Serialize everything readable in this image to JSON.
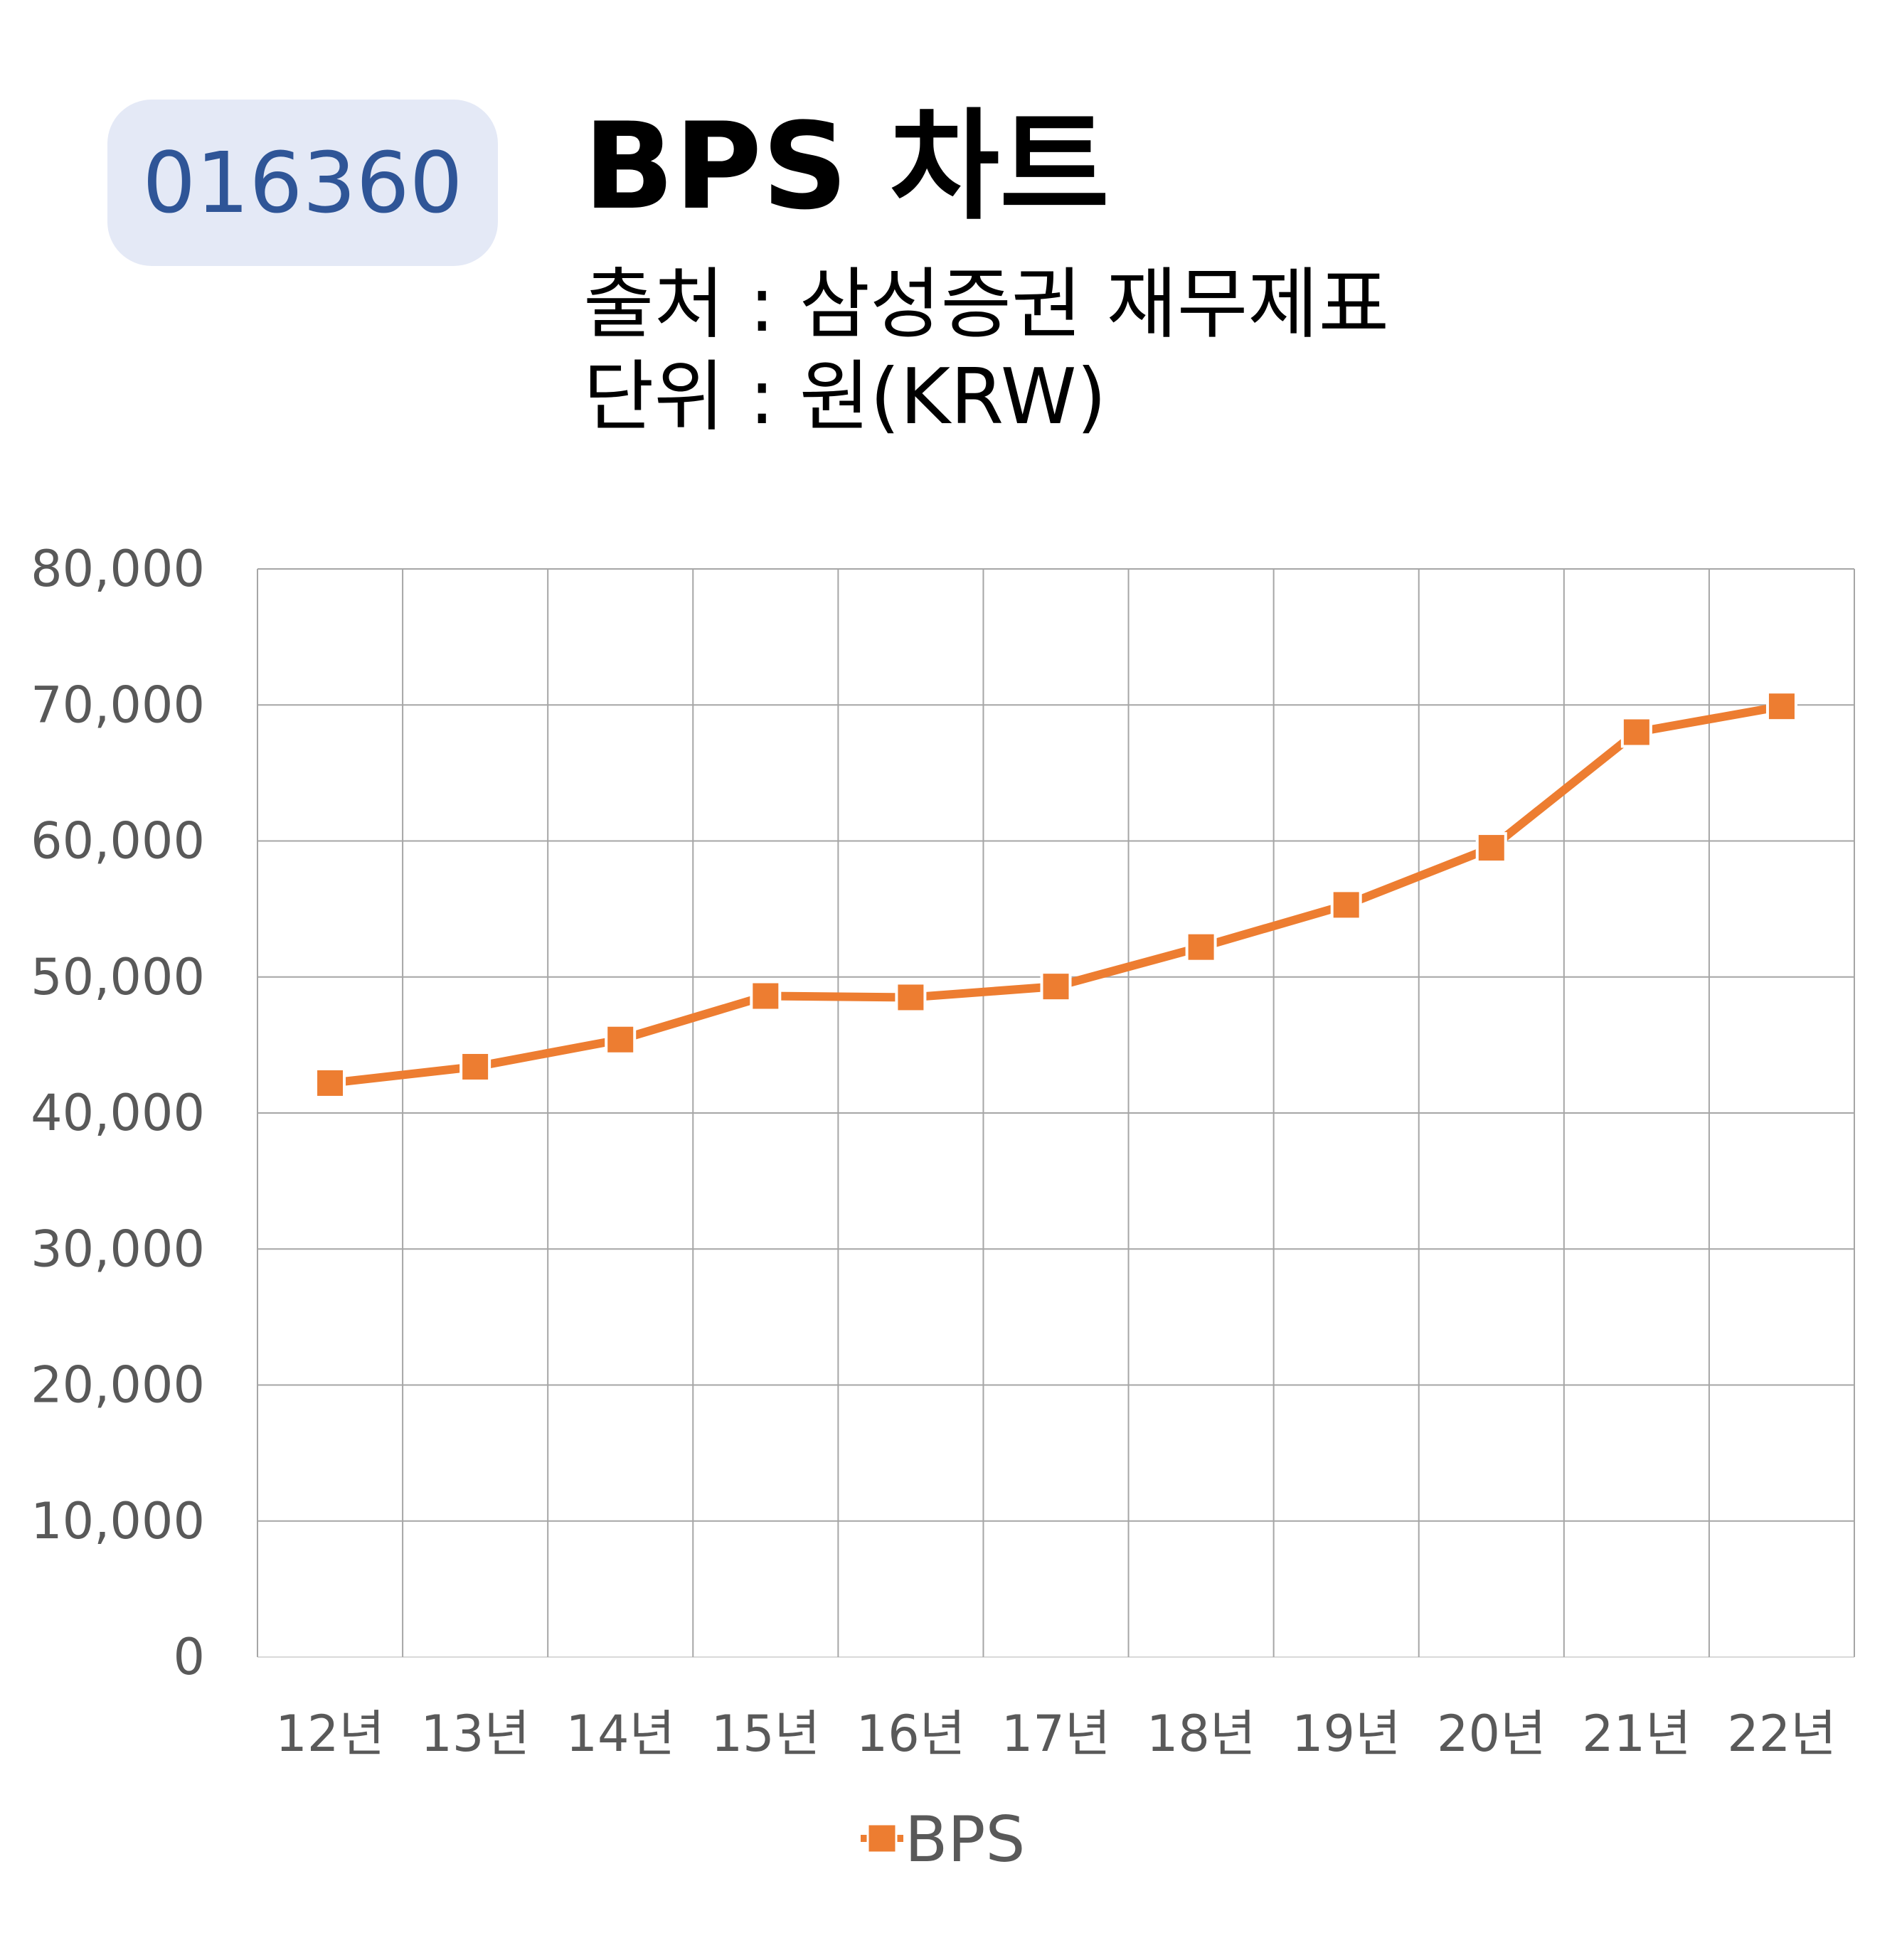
{
  "header": {
    "stock_code": "016360",
    "title": "BPS 차트",
    "source": "출처 : 삼성증권 재무제표",
    "unit": "단위 : 원(KRW)"
  },
  "chart_data": {
    "type": "line",
    "categories": [
      "12년",
      "13년",
      "14년",
      "15년",
      "16년",
      "17년",
      "18년",
      "19년",
      "20년",
      "21년",
      "22년"
    ],
    "series": [
      {
        "name": "BPS",
        "color": "#ed7d31",
        "marker": "square",
        "values": [
          42200,
          43400,
          45400,
          48600,
          48500,
          49300,
          52200,
          55300,
          59500,
          68000,
          69900
        ]
      }
    ],
    "y_ticks": [
      "0",
      "10,000",
      "20,000",
      "30,000",
      "40,000",
      "50,000",
      "60,000",
      "70,000",
      "80,000"
    ],
    "ylim": [
      0,
      80000
    ],
    "grid": true,
    "legend_position": "bottom"
  }
}
